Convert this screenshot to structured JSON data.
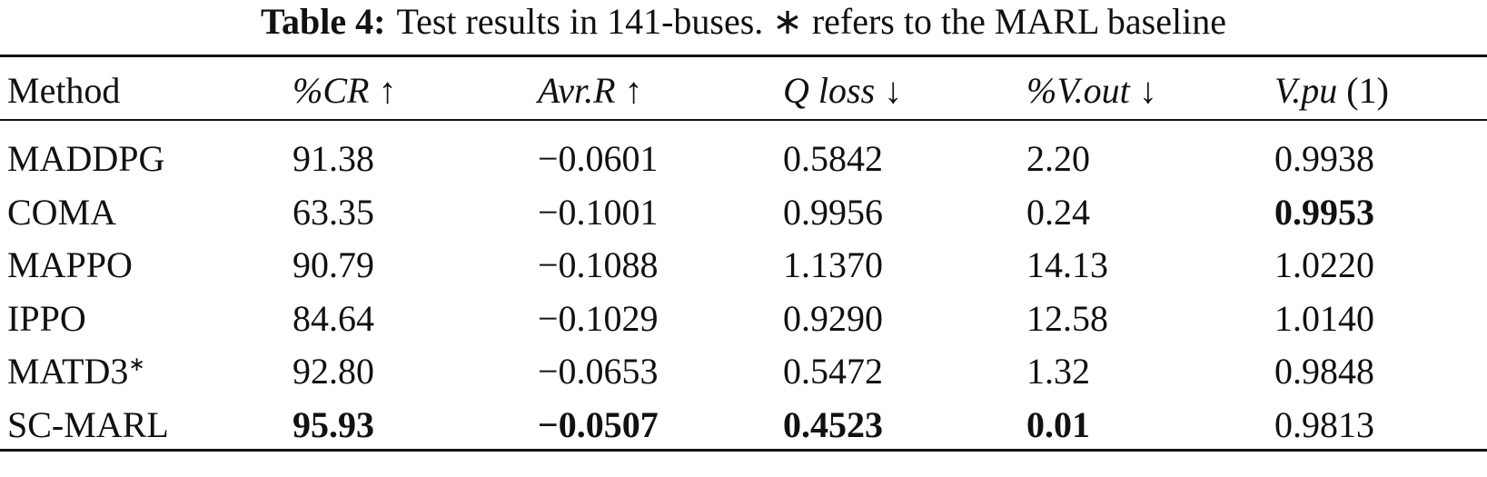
{
  "caption": {
    "label": "Table 4:",
    "text": "Test results in 141-buses. ∗ refers to the MARL baseline"
  },
  "table": {
    "header": [
      {
        "text": "Method"
      },
      {
        "text": "%CR",
        "mark": "↑"
      },
      {
        "text": "Avr.R",
        "mark": "↑"
      },
      {
        "text": "Q loss",
        "mark": "↓"
      },
      {
        "text": "%V.out",
        "mark": "↓"
      },
      {
        "text": "V.pu",
        "mark": "(1)"
      }
    ],
    "baseline_marker": "∗",
    "rows": [
      [
        "MADDPG",
        "91.38",
        "−0.0601",
        "0.5842",
        "2.20",
        "0.9938"
      ],
      [
        "COMA",
        "63.35",
        "−0.1001",
        "0.9956",
        "0.24",
        "0.9953"
      ],
      [
        "MAPPO",
        "90.79",
        "−0.1088",
        "1.1370",
        "14.13",
        "1.0220"
      ],
      [
        "IPPO",
        "84.64",
        "−0.1029",
        "0.9290",
        "12.58",
        "1.0140"
      ],
      [
        "MATD3",
        "92.80",
        "−0.0653",
        "0.5472",
        "1.32",
        "0.9848"
      ],
      [
        "SC-MARL",
        "95.93",
        "−0.0507",
        "0.4523",
        "0.01",
        "0.9813"
      ]
    ]
  }
}
